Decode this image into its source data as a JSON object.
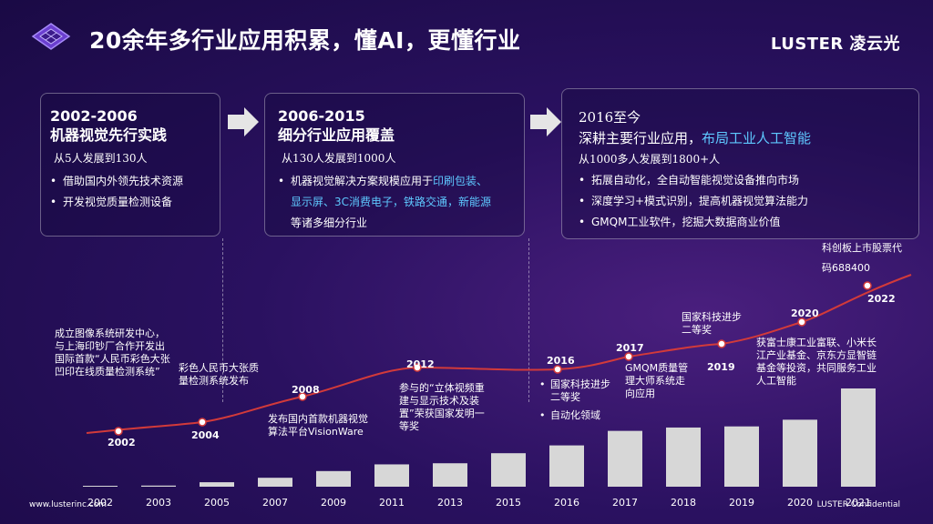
{
  "header": {
    "title": "20余年多行业应用积累，懂AI，更懂行业",
    "brand": "LUSTER 凌云光"
  },
  "phases": [
    {
      "title1": "2002-2006",
      "title2": "机器视觉先行实践",
      "sub": "从5人发展到130人",
      "bullets": [
        "借助国内外领先技术资源",
        "开发视觉质量检测设备"
      ]
    },
    {
      "title1": "2006-2015",
      "title2": "细分行业应用覆盖",
      "sub": "从130人发展到1000人",
      "b1a": "机器视觉解决方案规模应用于",
      "b1hl": "印刷包装、",
      "b1hl2": "显示屏、3C消费电子，铁路交通，新能源",
      "b1c": "等诸多细分行业"
    },
    {
      "title1": "2016至今",
      "title2a": "深耕主要行业应用，",
      "title2hl": "布局工业人工智能",
      "sub": "从1000多人发展到1800+人",
      "bullets": [
        "拓展自动化，全自动智能视觉设备推向市场",
        "深度学习+模式识别，提高机器视觉算法能力",
        "GMQM工业软件，挖掘大数据商业价值"
      ]
    }
  ],
  "events": {
    "e2002": "成立图像系统研发中心，与上海印钞厂合作开发出国际首款“人民币彩色大张凹印在线质量检测系统”",
    "e2004": "彩色人民币大张质量检测系统发布",
    "e2008": "发布国内首款机器视觉算法平台VisionWare",
    "e2012": "参与的“立体视频重建与显示技术及装置”荣获国家发明一等奖",
    "e2016a": "国家科技进步二等奖",
    "e2016b": "自动化领域",
    "e2017": "GMQM质量管理大师系统走向应用",
    "e2019": "国家科技进步二等奖",
    "e2020": "获富士康工业富联、小米长江产业基金、京东方显智链基金等投资，共同服务工业人工智能",
    "e2022": "科创板上市股票代码688400"
  },
  "milestone_years": [
    "2002",
    "2004",
    "2008",
    "2012",
    "2016",
    "2017",
    "2019",
    "2020",
    "2022"
  ],
  "chart_data": {
    "type": "bar",
    "categories": [
      "2002",
      "2003",
      "2005",
      "2007",
      "2009",
      "2011",
      "2013",
      "2015",
      "2016",
      "2017",
      "2018",
      "2019",
      "2020",
      "2021"
    ],
    "values": [
      0.3,
      1,
      4,
      8,
      14,
      20,
      21,
      30,
      37,
      50,
      53,
      54,
      60,
      88
    ]
  },
  "footer": {
    "left": "www.lusterinc.com",
    "right": "LUSTER Confidential"
  },
  "colors": {
    "highlight": "#5ec8ff",
    "curve": "#d23a3a",
    "bar": "#d7d7d7"
  }
}
